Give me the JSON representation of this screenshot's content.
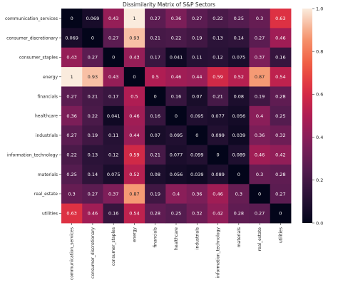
{
  "chart_data": {
    "type": "heatmap",
    "title": "Dissimilarity Matrix of S&P Sectors",
    "xlabel": "",
    "ylabel": "",
    "row_labels": [
      "communication_services",
      "consumer_discretionary",
      "consumer_staples",
      "energy",
      "financials",
      "healthcare",
      "industrials",
      "information_technology",
      "materials",
      "real_estate",
      "utilities"
    ],
    "col_labels": [
      "communication_services",
      "consumer_discretionary",
      "consumer_staples",
      "energy",
      "financials",
      "healthcare",
      "industrials",
      "information_technology",
      "materials",
      "real_estate",
      "utilities"
    ],
    "values": [
      [
        0,
        0.069,
        0.43,
        1,
        0.27,
        0.36,
        0.27,
        0.22,
        0.25,
        0.3,
        0.63
      ],
      [
        0.069,
        0,
        0.27,
        0.93,
        0.21,
        0.22,
        0.19,
        0.13,
        0.14,
        0.27,
        0.46
      ],
      [
        0.43,
        0.27,
        0,
        0.43,
        0.17,
        0.041,
        0.11,
        0.12,
        0.075,
        0.37,
        0.16
      ],
      [
        1,
        0.93,
        0.43,
        0,
        0.5,
        0.46,
        0.44,
        0.59,
        0.52,
        0.87,
        0.54
      ],
      [
        0.27,
        0.21,
        0.17,
        0.5,
        0,
        0.16,
        0.07,
        0.21,
        0.08,
        0.19,
        0.28
      ],
      [
        0.36,
        0.22,
        0.041,
        0.46,
        0.16,
        0,
        0.095,
        0.077,
        0.056,
        0.4,
        0.25
      ],
      [
        0.27,
        0.19,
        0.11,
        0.44,
        0.07,
        0.095,
        0,
        0.099,
        0.039,
        0.36,
        0.32
      ],
      [
        0.22,
        0.13,
        0.12,
        0.59,
        0.21,
        0.077,
        0.099,
        0,
        0.089,
        0.46,
        0.42
      ],
      [
        0.25,
        0.14,
        0.075,
        0.52,
        0.08,
        0.056,
        0.039,
        0.089,
        0,
        0.3,
        0.28
      ],
      [
        0.3,
        0.27,
        0.37,
        0.87,
        0.19,
        0.4,
        0.36,
        0.46,
        0.3,
        0,
        0.27
      ],
      [
        0.63,
        0.46,
        0.16,
        0.54,
        0.28,
        0.25,
        0.32,
        0.42,
        0.28,
        0.27,
        0
      ]
    ],
    "value_range": [
      0,
      1
    ],
    "colormap": "rocket",
    "colorbar": {
      "ticks": [
        0.0,
        0.2,
        0.4,
        0.6,
        0.8,
        1.0
      ],
      "tick_labels": [
        "0.0",
        "0.2",
        "0.4",
        "0.6",
        "0.8",
        "1.0"
      ]
    },
    "annotated": true,
    "grid": false
  }
}
